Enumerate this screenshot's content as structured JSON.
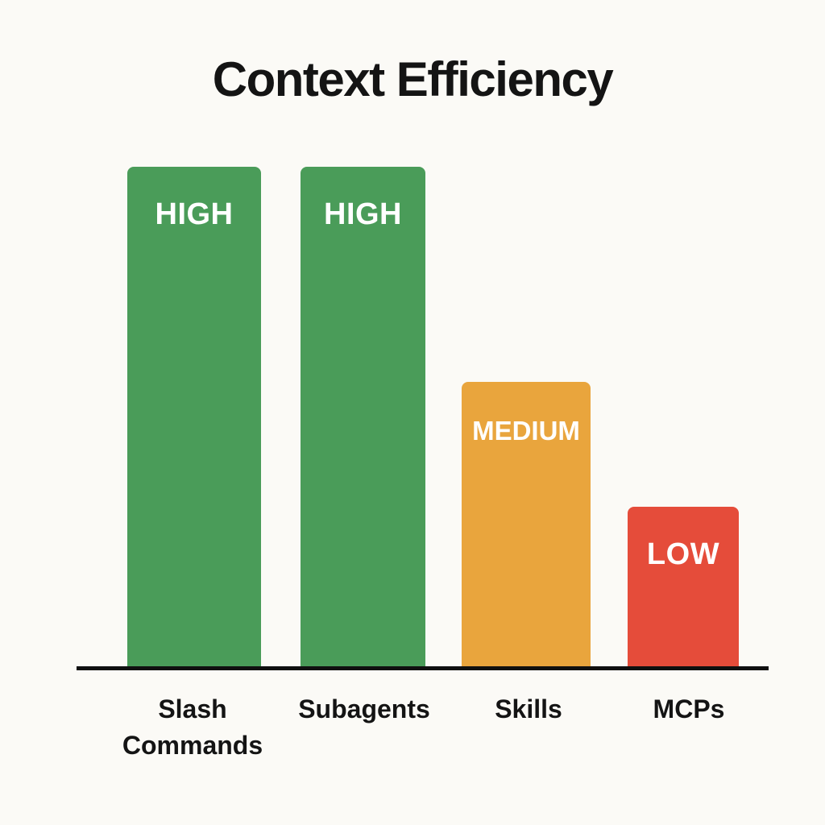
{
  "title": "Context Efficiency",
  "chart_data": {
    "type": "bar",
    "title": "Context Efficiency",
    "xlabel": "",
    "ylabel": "",
    "legend": "none",
    "grid": false,
    "categories": [
      "Slash Commands",
      "Subagents",
      "Skills",
      "MCPs"
    ],
    "values": [
      "HIGH",
      "HIGH",
      "MEDIUM",
      "LOW"
    ],
    "value_scale": [
      "LOW",
      "MEDIUM",
      "HIGH"
    ],
    "bars": [
      {
        "category": "Slash Commands",
        "category_line1": "Slash",
        "category_line2": "Commands",
        "level": "HIGH",
        "value_pct": 100,
        "color": "#4a9c59"
      },
      {
        "category": "Subagents",
        "category_line1": "Subagents",
        "level": "HIGH",
        "value_pct": 100,
        "color": "#4a9c59"
      },
      {
        "category": "Skills",
        "category_line1": "Skills",
        "level": "MEDIUM",
        "value_pct": 57,
        "color": "#e9a53d"
      },
      {
        "category": "MCPs",
        "category_line1": "MCPs",
        "level": "LOW",
        "value_pct": 32,
        "color": "#e54c3a"
      }
    ],
    "colors": {
      "high": "#4a9c59",
      "medium": "#e9a53d",
      "low": "#e54c3a",
      "axis": "#101010",
      "text": "#141414",
      "bar_label_text": "#ffffff",
      "background": "#fbfaf6"
    }
  }
}
